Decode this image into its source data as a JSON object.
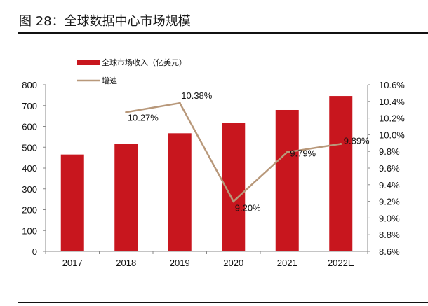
{
  "figure": {
    "title": "图 28：全球数据中心市场规模"
  },
  "colors": {
    "bar": "#c8161e",
    "line": "#b8987a",
    "axis": "#888888"
  },
  "chart_data": {
    "type": "bar+line",
    "title": "全球数据中心市场规模",
    "categories": [
      "2017",
      "2018",
      "2019",
      "2020",
      "2021",
      "2022E"
    ],
    "series": [
      {
        "name": "全球市场收入（亿美元）",
        "type": "bar",
        "axis": "left",
        "values": [
          465,
          515,
          567,
          618,
          679,
          746
        ]
      },
      {
        "name": "增速",
        "type": "line",
        "axis": "right",
        "values": [
          null,
          10.27,
          10.38,
          9.2,
          9.79,
          9.89
        ],
        "labels": [
          null,
          "10.27%",
          "10.38%",
          "9.20%",
          "9.79%",
          "9.89%"
        ]
      }
    ],
    "y_left": {
      "min": 0,
      "max": 800,
      "step": 100,
      "ticks": [
        "0",
        "100",
        "200",
        "300",
        "400",
        "500",
        "600",
        "700",
        "800"
      ]
    },
    "y_right": {
      "min": 8.6,
      "max": 10.6,
      "step": 0.2,
      "ticks": [
        "8.6%",
        "8.8%",
        "9.0%",
        "9.2%",
        "9.4%",
        "9.6%",
        "9.8%",
        "10.0%",
        "10.2%",
        "10.4%",
        "10.6%"
      ]
    },
    "legend_position": "top-left",
    "grid": false
  }
}
